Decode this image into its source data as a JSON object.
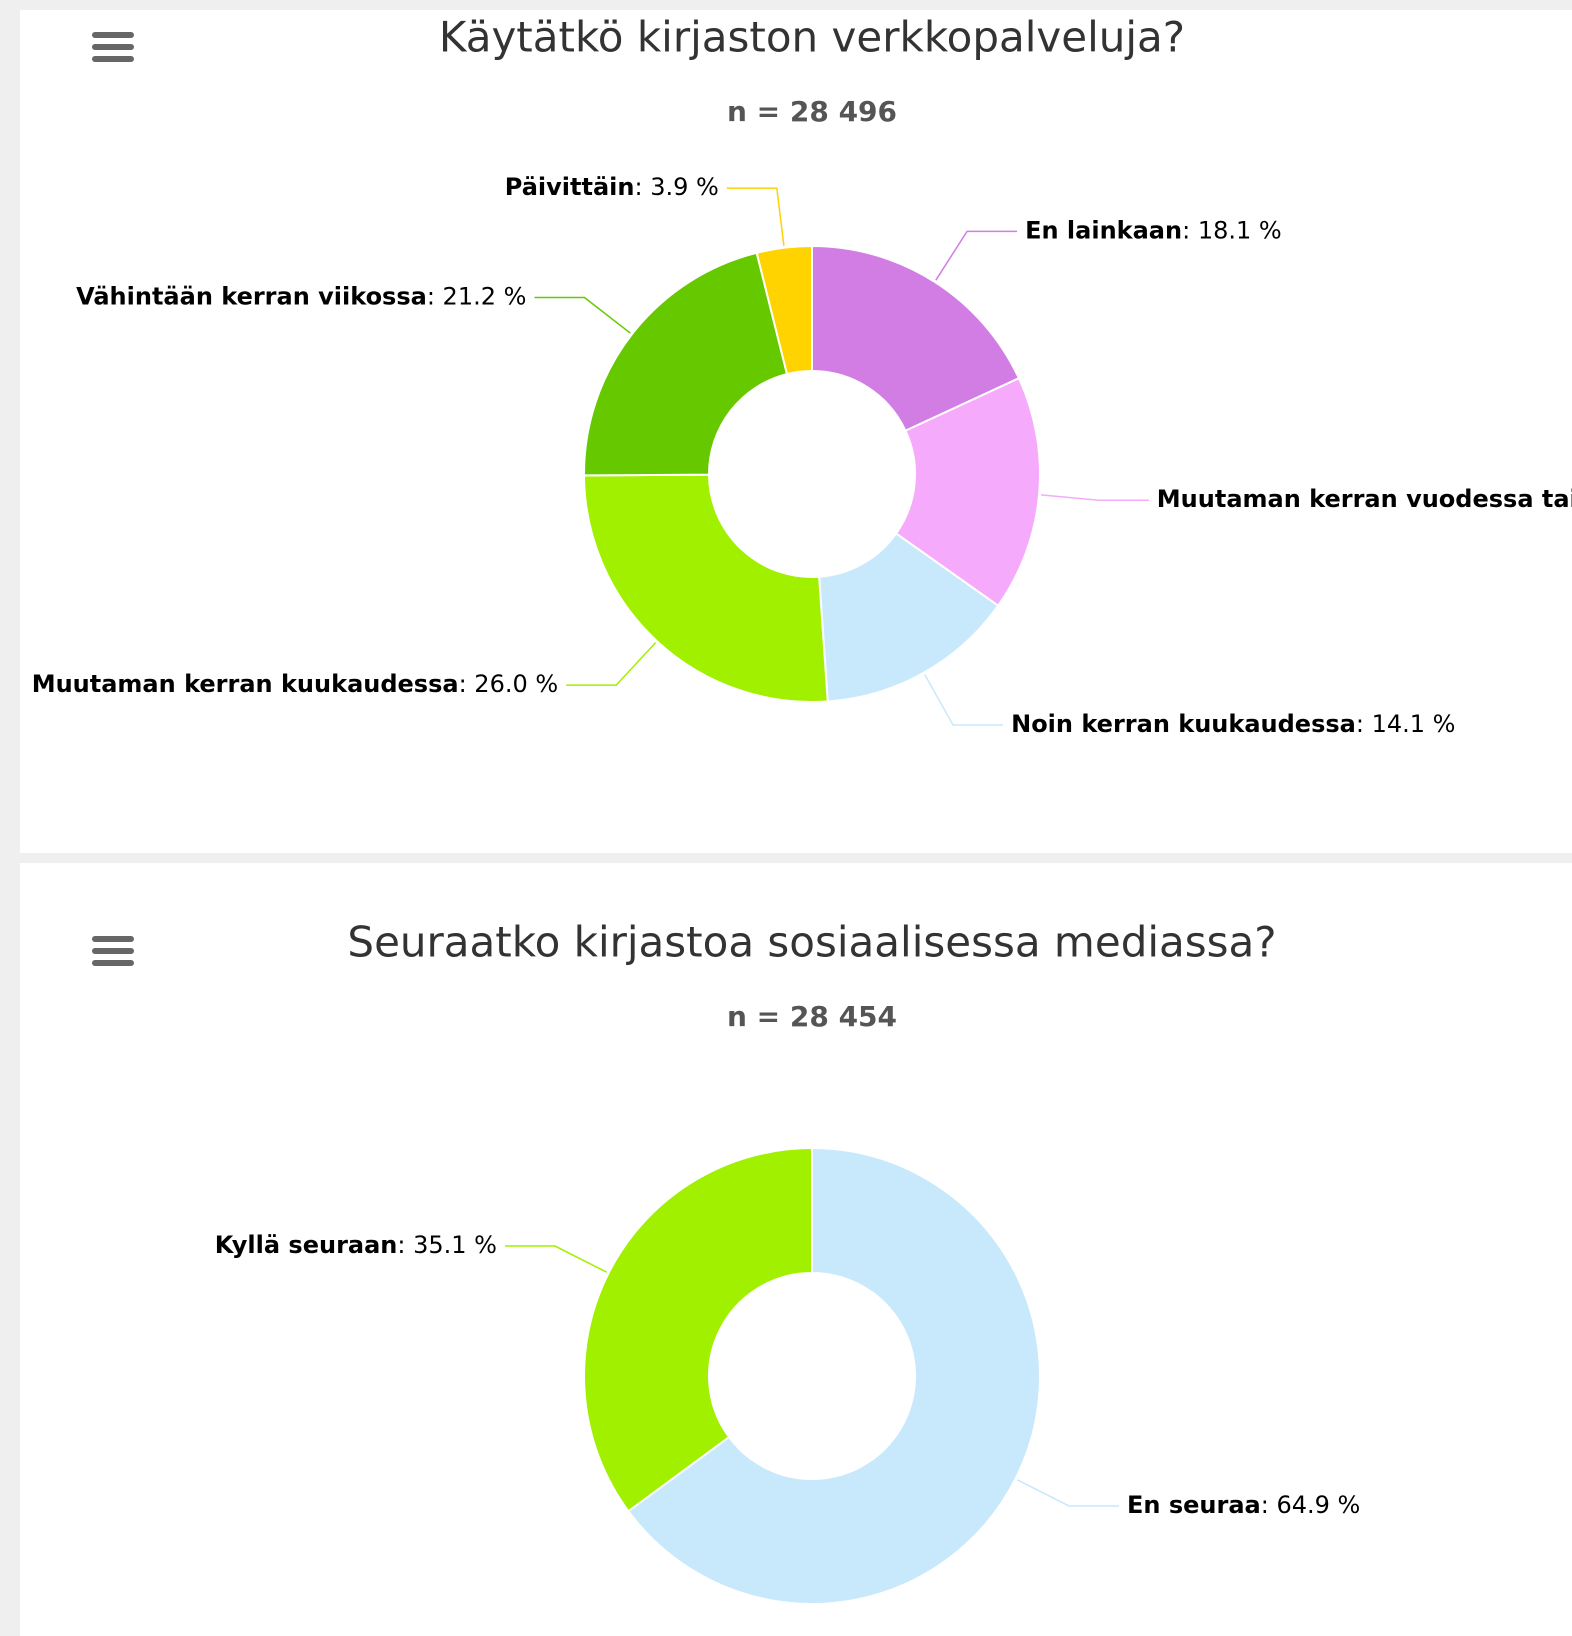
{
  "chart_data": [
    {
      "type": "donut",
      "title": "Käytätkö kirjaston verkkopalveluja?",
      "subtitle": "n = 28 496",
      "categories": [
        "En lainkaan",
        "Muutaman kerran vuodessa tai",
        "Noin kerran kuukaudessa",
        "Muutaman kerran kuukaudessa",
        "Vähintään kerran viikossa",
        "Päivittäin"
      ],
      "values": [
        18.1,
        16.7,
        14.1,
        26.0,
        21.2,
        3.9
      ],
      "value_labels": [
        "18.1 %",
        null,
        "14.1 %",
        "26.0 %",
        "21.2 %",
        "3.9 %"
      ],
      "colors": [
        "#d17de4",
        "#f6aafb",
        "#c8e9fb",
        "#a0f000",
        "#66c900",
        "#ffd300"
      ]
    },
    {
      "type": "donut",
      "title": "Seuraatko kirjastoa sosiaalisessa mediassa?",
      "subtitle": "n = 28 454",
      "categories": [
        "En seuraa",
        "Kyllä seuraan"
      ],
      "values": [
        64.9,
        35.1
      ],
      "value_labels": [
        "64.9 %",
        "35.1 %"
      ],
      "colors": [
        "#c8e9fb",
        "#a0f000"
      ]
    }
  ]
}
